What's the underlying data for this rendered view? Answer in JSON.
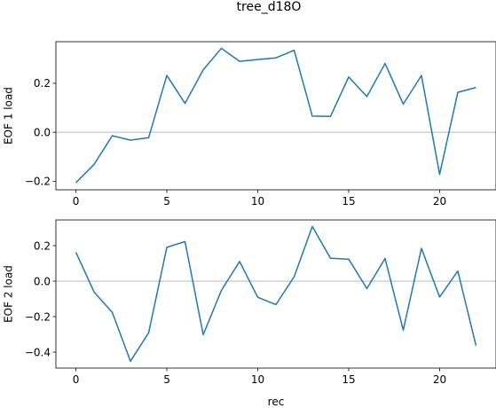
{
  "chart_data": {
    "type": "line",
    "title": "tree_d18O",
    "xlabel": "rec",
    "line_color": "#1f77b4",
    "zero_line_color": "#a0a0a0",
    "subplots": [
      {
        "ylabel": "EOF 1 load",
        "xlim": [
          -1.1,
          23.1
        ],
        "ylim": [
          -0.235,
          0.37
        ],
        "xticks": [
          0,
          5,
          10,
          15,
          20
        ],
        "yticks": [
          -0.2,
          0.0,
          0.2
        ],
        "ytick_labels": [
          "−0.2",
          "0.0",
          "0.2"
        ],
        "zero_line": true,
        "series": [
          {
            "x": [
              0,
              1,
              2,
              3,
              4,
              5,
              6,
              7,
              8,
              9,
              10,
              11,
              12,
              13,
              14,
              15,
              16,
              17,
              18,
              19,
              20,
              21,
              22
            ],
            "y": [
              -0.206,
              -0.131,
              -0.014,
              -0.032,
              -0.022,
              0.232,
              0.118,
              0.255,
              0.343,
              0.29,
              0.297,
              0.304,
              0.335,
              0.066,
              0.065,
              0.226,
              0.146,
              0.281,
              0.115,
              0.232,
              -0.172,
              0.163,
              0.183
            ]
          }
        ]
      },
      {
        "ylabel": "EOF 2 load",
        "xlim": [
          -1.1,
          23.1
        ],
        "ylim": [
          -0.49,
          0.345
        ],
        "xticks": [
          0,
          5,
          10,
          15,
          20
        ],
        "yticks": [
          -0.4,
          -0.2,
          0.0,
          0.2
        ],
        "ytick_labels": [
          "−0.4",
          "−0.2",
          "0.0",
          "0.2"
        ],
        "zero_line": true,
        "series": [
          {
            "x": [
              0,
              1,
              2,
              3,
              4,
              5,
              6,
              7,
              8,
              9,
              10,
              11,
              12,
              13,
              14,
              15,
              16,
              17,
              18,
              19,
              20,
              21,
              22
            ],
            "y": [
              0.163,
              -0.061,
              -0.176,
              -0.451,
              -0.291,
              0.191,
              0.223,
              -0.302,
              -0.052,
              0.111,
              -0.091,
              -0.132,
              0.025,
              0.308,
              0.129,
              0.124,
              -0.042,
              0.128,
              -0.276,
              0.185,
              -0.089,
              0.057,
              -0.363
            ]
          }
        ]
      }
    ]
  }
}
